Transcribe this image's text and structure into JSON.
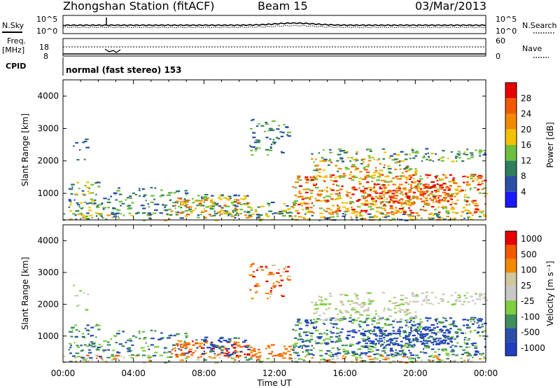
{
  "header": {
    "station": "Zhongshan Station (fitACF)",
    "beam": "Beam 15",
    "date": "03/Mar/2013"
  },
  "panel_labels": {
    "nsky": "N.Sky",
    "nsearch": "N.Search",
    "freq": "Freq.",
    "freq_unit": "[MHz]",
    "nave": "Nave",
    "cpid": "CPID",
    "cpid_value": "normal (fast stereo) 153"
  },
  "noise_ticks": {
    "left": [
      "10^5",
      "10^0"
    ],
    "right": [
      "10^5",
      "10^0"
    ]
  },
  "freq_ticks": {
    "left": [
      "18",
      "8"
    ],
    "right": [
      "60",
      "0"
    ]
  },
  "colors": {
    "power": [
      "#1a1aff",
      "#2a4fa8",
      "#2f7f5c",
      "#6fbf3f",
      "#f2c200",
      "#f28a00",
      "#f25a00",
      "#e60000"
    ],
    "velocity": [
      "#e60000",
      "#f25a00",
      "#f28a00",
      "#cfc7a0",
      "#c8c8c8",
      "#7fcf3f",
      "#3f8f5c",
      "#2a4fa8",
      "#1f3fbf"
    ]
  },
  "chart_data": [
    {
      "type": "heatmap",
      "name": "power",
      "xlabel": "Time UT",
      "ylabel": "Slant Range [km]",
      "x_ticks": [
        "00:00",
        "04:00",
        "08:00",
        "12:00",
        "16:00",
        "20:00",
        "00:00"
      ],
      "y_ticks": [
        "1000",
        "2000",
        "3000",
        "4000"
      ],
      "ylim": [
        180,
        4500
      ],
      "xlim_hours": [
        0,
        24
      ],
      "colorbar_label": "Power [dB]",
      "colorbar_ticks": [
        "4",
        "8",
        "12",
        "16",
        "20",
        "24",
        "28"
      ],
      "colorbar_range": [
        0,
        30
      ]
    },
    {
      "type": "heatmap",
      "name": "velocity",
      "xlabel": "Time UT",
      "ylabel": "Slant Range [km]",
      "x_ticks": [
        "00:00",
        "04:00",
        "08:00",
        "12:00",
        "16:00",
        "20:00",
        "00:00"
      ],
      "y_ticks": [
        "1000",
        "2000",
        "3000",
        "4000"
      ],
      "ylim": [
        180,
        4500
      ],
      "xlim_hours": [
        0,
        24
      ],
      "colorbar_label": "Velocity [m s⁻¹]",
      "colorbar_ticks": [
        "1000",
        "500",
        "100",
        "25",
        "-25",
        "-100",
        "-500",
        "-1000"
      ]
    }
  ]
}
